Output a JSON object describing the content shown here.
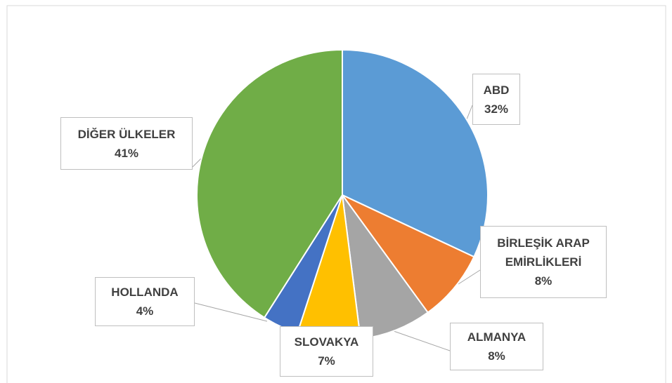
{
  "chart_data": {
    "type": "pie",
    "categories": [
      "ABD",
      "BİRLEŞİK ARAP EMİRLİKLERİ",
      "ALMANYA",
      "SLOVAKYA",
      "HOLLANDA",
      "DİĞER ÜLKELER"
    ],
    "values": [
      32,
      8,
      8,
      7,
      4,
      41
    ],
    "value_labels": [
      "32%",
      "8%",
      "8%",
      "7%",
      "4%",
      "41%"
    ],
    "colors": [
      "#5b9bd5",
      "#ed7d31",
      "#a5a5a5",
      "#ffc000",
      "#4472c4",
      "#70ad47"
    ]
  }
}
